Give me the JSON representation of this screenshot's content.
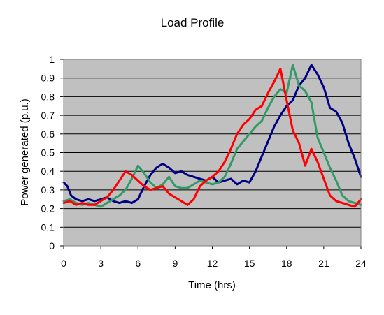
{
  "chart_data": {
    "type": "line",
    "title": "Load Profile",
    "xlabel": "Time (hrs)",
    "ylabel": "Power generated (p.u.)",
    "xlim": [
      0,
      24
    ],
    "ylim": [
      0,
      1
    ],
    "x_ticks": [
      "0",
      "3",
      "6",
      "9",
      "12",
      "15",
      "18",
      "21",
      "24"
    ],
    "y_ticks": [
      "0",
      "0.1",
      "0.2",
      "0.3",
      "0.4",
      "0.5",
      "0.6",
      "0.7",
      "0.8",
      "0.9",
      "1"
    ],
    "grid": "horizontal",
    "legend": "none",
    "plot_background": "#c0c0c0",
    "series": [
      {
        "color": "#000080",
        "points": [
          [
            0,
            0.34
          ],
          [
            0.3,
            0.32
          ],
          [
            0.6,
            0.27
          ],
          [
            1,
            0.25
          ],
          [
            1.5,
            0.24
          ],
          [
            2,
            0.25
          ],
          [
            2.5,
            0.24
          ],
          [
            3,
            0.25
          ],
          [
            3.5,
            0.26
          ],
          [
            4,
            0.24
          ],
          [
            4.5,
            0.23
          ],
          [
            5,
            0.24
          ],
          [
            5.5,
            0.23
          ],
          [
            6,
            0.25
          ],
          [
            6.5,
            0.32
          ],
          [
            7,
            0.38
          ],
          [
            7.5,
            0.42
          ],
          [
            8,
            0.44
          ],
          [
            8.5,
            0.42
          ],
          [
            9,
            0.39
          ],
          [
            9.5,
            0.4
          ],
          [
            10,
            0.38
          ],
          [
            10.5,
            0.37
          ],
          [
            11,
            0.36
          ],
          [
            11.5,
            0.35
          ],
          [
            12,
            0.37
          ],
          [
            12.5,
            0.34
          ],
          [
            13,
            0.35
          ],
          [
            13.5,
            0.36
          ],
          [
            14,
            0.33
          ],
          [
            14.5,
            0.35
          ],
          [
            15,
            0.34
          ],
          [
            15.5,
            0.4
          ],
          [
            16,
            0.48
          ],
          [
            16.5,
            0.56
          ],
          [
            17,
            0.64
          ],
          [
            17.5,
            0.7
          ],
          [
            18,
            0.75
          ],
          [
            18.5,
            0.78
          ],
          [
            19,
            0.86
          ],
          [
            19.5,
            0.9
          ],
          [
            20,
            0.97
          ],
          [
            20.5,
            0.92
          ],
          [
            21,
            0.85
          ],
          [
            21.5,
            0.74
          ],
          [
            22,
            0.72
          ],
          [
            22.5,
            0.66
          ],
          [
            23,
            0.55
          ],
          [
            23.5,
            0.47
          ],
          [
            24,
            0.37
          ]
        ]
      },
      {
        "color": "#339966",
        "points": [
          [
            0,
            0.24
          ],
          [
            0.5,
            0.25
          ],
          [
            1,
            0.23
          ],
          [
            1.5,
            0.22
          ],
          [
            2,
            0.23
          ],
          [
            2.5,
            0.22
          ],
          [
            3,
            0.21
          ],
          [
            3.5,
            0.23
          ],
          [
            4,
            0.25
          ],
          [
            4.5,
            0.27
          ],
          [
            5,
            0.3
          ],
          [
            5.5,
            0.36
          ],
          [
            6,
            0.43
          ],
          [
            6.5,
            0.39
          ],
          [
            7,
            0.34
          ],
          [
            7.5,
            0.31
          ],
          [
            8,
            0.33
          ],
          [
            8.5,
            0.37
          ],
          [
            9,
            0.32
          ],
          [
            9.5,
            0.31
          ],
          [
            10,
            0.31
          ],
          [
            10.5,
            0.33
          ],
          [
            11,
            0.35
          ],
          [
            11.5,
            0.34
          ],
          [
            12,
            0.33
          ],
          [
            12.5,
            0.34
          ],
          [
            13,
            0.37
          ],
          [
            13.5,
            0.44
          ],
          [
            14,
            0.52
          ],
          [
            14.5,
            0.56
          ],
          [
            15,
            0.6
          ],
          [
            15.5,
            0.64
          ],
          [
            16,
            0.67
          ],
          [
            16.5,
            0.74
          ],
          [
            17,
            0.8
          ],
          [
            17.5,
            0.84
          ],
          [
            18,
            0.82
          ],
          [
            18.5,
            0.97
          ],
          [
            19,
            0.86
          ],
          [
            19.5,
            0.83
          ],
          [
            20,
            0.77
          ],
          [
            20.5,
            0.58
          ],
          [
            21,
            0.5
          ],
          [
            21.5,
            0.42
          ],
          [
            22,
            0.35
          ],
          [
            22.5,
            0.27
          ],
          [
            23,
            0.24
          ],
          [
            23.5,
            0.23
          ],
          [
            24,
            0.22
          ]
        ]
      },
      {
        "color": "#ff0000",
        "points": [
          [
            0,
            0.23
          ],
          [
            0.5,
            0.24
          ],
          [
            1,
            0.22
          ],
          [
            1.5,
            0.23
          ],
          [
            2,
            0.22
          ],
          [
            2.5,
            0.22
          ],
          [
            3,
            0.24
          ],
          [
            3.5,
            0.26
          ],
          [
            4,
            0.3
          ],
          [
            4.5,
            0.35
          ],
          [
            5,
            0.4
          ],
          [
            5.5,
            0.38
          ],
          [
            6,
            0.35
          ],
          [
            6.5,
            0.32
          ],
          [
            7,
            0.3
          ],
          [
            7.5,
            0.31
          ],
          [
            8,
            0.32
          ],
          [
            8.5,
            0.28
          ],
          [
            9,
            0.26
          ],
          [
            9.5,
            0.24
          ],
          [
            10,
            0.22
          ],
          [
            10.5,
            0.25
          ],
          [
            11,
            0.32
          ],
          [
            11.5,
            0.35
          ],
          [
            12,
            0.37
          ],
          [
            12.5,
            0.4
          ],
          [
            13,
            0.45
          ],
          [
            13.5,
            0.52
          ],
          [
            14,
            0.6
          ],
          [
            14.5,
            0.65
          ],
          [
            15,
            0.68
          ],
          [
            15.5,
            0.73
          ],
          [
            16,
            0.75
          ],
          [
            16.5,
            0.82
          ],
          [
            17,
            0.88
          ],
          [
            17.5,
            0.95
          ],
          [
            18,
            0.78
          ],
          [
            18.5,
            0.62
          ],
          [
            19,
            0.55
          ],
          [
            19.5,
            0.43
          ],
          [
            20,
            0.52
          ],
          [
            20.5,
            0.45
          ],
          [
            21,
            0.36
          ],
          [
            21.5,
            0.27
          ],
          [
            22,
            0.24
          ],
          [
            22.5,
            0.23
          ],
          [
            23,
            0.22
          ],
          [
            23.5,
            0.21
          ],
          [
            24,
            0.25
          ]
        ]
      }
    ]
  }
}
